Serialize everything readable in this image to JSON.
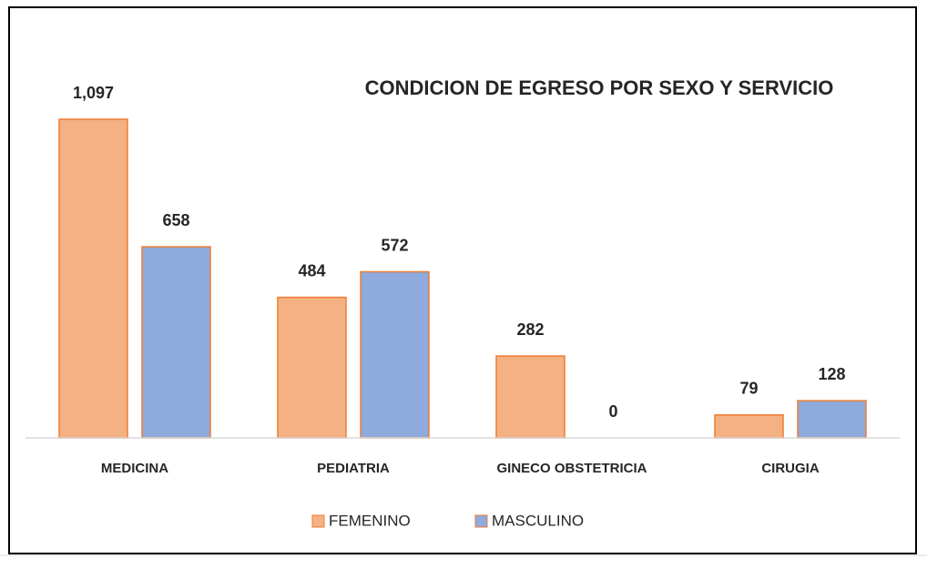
{
  "chart_data": {
    "type": "bar",
    "title": "CONDICION DE EGRESO POR SEXO Y SERVICIO",
    "categories": [
      "MEDICINA",
      "PEDIATRIA",
      "GINECO OBSTETRICIA",
      "CIRUGIA"
    ],
    "series": [
      {
        "name": "FEMENINO",
        "color": "#f4b183",
        "values": [
          1097,
          484,
          282,
          79
        ],
        "value_labels": [
          "1,097",
          "484",
          "282",
          "79"
        ]
      },
      {
        "name": "MASCULINO",
        "color": "#8faadc",
        "values": [
          658,
          572,
          0,
          128
        ]
      }
    ],
    "legend": "bottom"
  }
}
